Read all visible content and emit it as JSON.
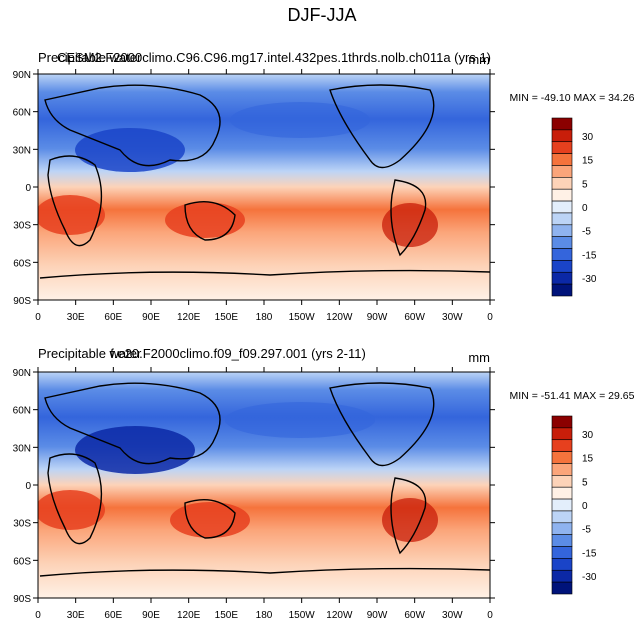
{
  "title": "DJF-JJA",
  "colorbar_levels": [
    "30",
    "15",
    "5",
    "0",
    "-5",
    "-15",
    "-30"
  ],
  "colorbar_colors": [
    "#8b0000",
    "#c81e0a",
    "#e6401e",
    "#f5733c",
    "#fba57a",
    "#fdd3b8",
    "#fff1e6",
    "#e3eefb",
    "#bcd4f6",
    "#8fb3ef",
    "#5b8ce6",
    "#3465dc",
    "#1a44c8",
    "#0b28a6",
    "#00137a"
  ],
  "lat_ticks": [
    "90N",
    "60N",
    "30N",
    "0",
    "30S",
    "60S",
    "90S"
  ],
  "lon_ticks": [
    "0",
    "30E",
    "60E",
    "90E",
    "120E",
    "150E",
    "180",
    "150W",
    "120W",
    "90W",
    "60W",
    "30W",
    "0"
  ],
  "panels": [
    {
      "left_title": "Precipitable water",
      "case_title": "CESM2.F2000climo.C96.C96.mg17.intel.432pes.1thrds.nolb.ch011a (yrs 1)",
      "units": "mm",
      "stats": "MIN = -49.10 MAX =  34.26"
    },
    {
      "left_title": "Precipitable water",
      "case_title": "f.e20.F2000climo.f09_f09.297.001 (yrs 2-11)",
      "units": "mm",
      "stats": "MIN = -51.41 MAX =  29.65"
    }
  ],
  "chart_data": [
    {
      "type": "heatmap",
      "title": "DJF-JJA",
      "subtitle": "CESM2.F2000climo.C96.C96.mg17.intel.432pes.1thrds.nolb.ch011a (yrs 1)",
      "variable": "Precipitable water",
      "units": "mm",
      "min": -49.1,
      "max": 34.26,
      "x_ticks": [
        "0",
        "30E",
        "60E",
        "90E",
        "120E",
        "150E",
        "180",
        "150W",
        "120W",
        "90W",
        "60W",
        "30W",
        "0"
      ],
      "y_ticks": [
        "90N",
        "60N",
        "30N",
        "0",
        "30S",
        "60S",
        "90S"
      ],
      "contour_levels": [
        -30,
        -15,
        -5,
        0,
        5,
        15,
        30
      ]
    },
    {
      "type": "heatmap",
      "title": "DJF-JJA",
      "subtitle": "f.e20.F2000climo.f09_f09.297.001 (yrs 2-11)",
      "variable": "Precipitable water",
      "units": "mm",
      "min": -51.41,
      "max": 29.65,
      "x_ticks": [
        "0",
        "30E",
        "60E",
        "90E",
        "120E",
        "150E",
        "180",
        "150W",
        "120W",
        "90W",
        "60W",
        "30W",
        "0"
      ],
      "y_ticks": [
        "90N",
        "60N",
        "30N",
        "0",
        "30S",
        "60S",
        "90S"
      ],
      "contour_levels": [
        -30,
        -15,
        -5,
        0,
        5,
        15,
        30
      ]
    }
  ]
}
